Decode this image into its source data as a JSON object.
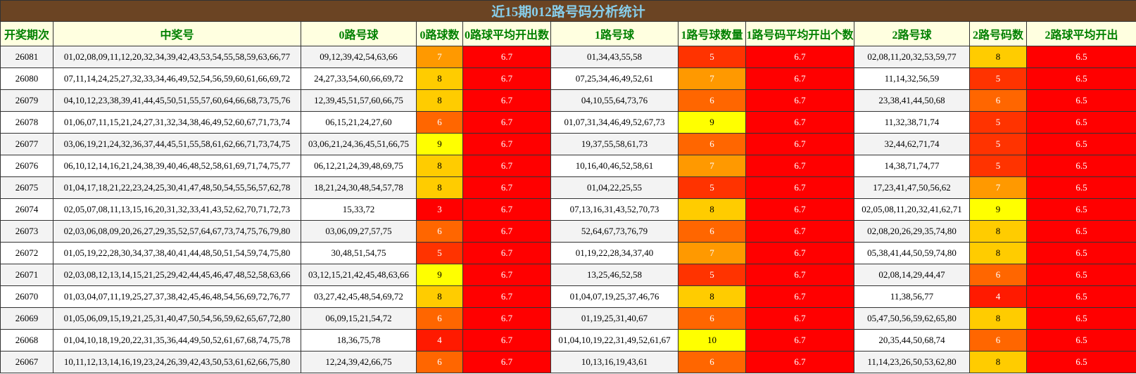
{
  "title": "近15期012路号码分析统计",
  "headers": [
    "开奖期次",
    "中奖号",
    "0路号球",
    "0路球数",
    "0路球平均开出数",
    "1路号球",
    "1路号球数量",
    "1路号码平均开出个数",
    "2路号球",
    "2路号码数",
    "2路球平均开出"
  ],
  "colors": {
    "header_bg": "#6b4423",
    "title_text": "#87ceeb",
    "subheader_bg": "#ffffe0",
    "subheader_text": "#008000",
    "avg_bg": "#ff0000",
    "count_scale": {
      "3": "#ff0000",
      "4": "#ff1a00",
      "5": "#ff3300",
      "6": "#ff6600",
      "7": "#ff9900",
      "8": "#ffcc00",
      "9": "#ffff00",
      "10": "#ffff00"
    }
  },
  "rows": [
    {
      "period": "26081",
      "numbers": "01,02,08,09,11,12,20,32,34,39,42,43,53,54,55,58,59,63,66,77",
      "r0": "09,12,39,42,54,63,66",
      "r0_count": "7",
      "r0_avg": "6.7",
      "r1": "01,34,43,55,58",
      "r1_count": "5",
      "r1_avg": "6.7",
      "r2": "02,08,11,20,32,53,59,77",
      "r2_count": "8",
      "r2_avg": "6.5"
    },
    {
      "period": "26080",
      "numbers": "07,11,14,24,25,27,32,33,34,46,49,52,54,56,59,60,61,66,69,72",
      "r0": "24,27,33,54,60,66,69,72",
      "r0_count": "8",
      "r0_avg": "6.7",
      "r1": "07,25,34,46,49,52,61",
      "r1_count": "7",
      "r1_avg": "6.7",
      "r2": "11,14,32,56,59",
      "r2_count": "5",
      "r2_avg": "6.5"
    },
    {
      "period": "26079",
      "numbers": "04,10,12,23,38,39,41,44,45,50,51,55,57,60,64,66,68,73,75,76",
      "r0": "12,39,45,51,57,60,66,75",
      "r0_count": "8",
      "r0_avg": "6.7",
      "r1": "04,10,55,64,73,76",
      "r1_count": "6",
      "r1_avg": "6.7",
      "r2": "23,38,41,44,50,68",
      "r2_count": "6",
      "r2_avg": "6.5"
    },
    {
      "period": "26078",
      "numbers": "01,06,07,11,15,21,24,27,31,32,34,38,46,49,52,60,67,71,73,74",
      "r0": "06,15,21,24,27,60",
      "r0_count": "6",
      "r0_avg": "6.7",
      "r1": "01,07,31,34,46,49,52,67,73",
      "r1_count": "9",
      "r1_avg": "6.7",
      "r2": "11,32,38,71,74",
      "r2_count": "5",
      "r2_avg": "6.5"
    },
    {
      "period": "26077",
      "numbers": "03,06,19,21,24,32,36,37,44,45,51,55,58,61,62,66,71,73,74,75",
      "r0": "03,06,21,24,36,45,51,66,75",
      "r0_count": "9",
      "r0_avg": "6.7",
      "r1": "19,37,55,58,61,73",
      "r1_count": "6",
      "r1_avg": "6.7",
      "r2": "32,44,62,71,74",
      "r2_count": "5",
      "r2_avg": "6.5"
    },
    {
      "period": "26076",
      "numbers": "06,10,12,14,16,21,24,38,39,40,46,48,52,58,61,69,71,74,75,77",
      "r0": "06,12,21,24,39,48,69,75",
      "r0_count": "8",
      "r0_avg": "6.7",
      "r1": "10,16,40,46,52,58,61",
      "r1_count": "7",
      "r1_avg": "6.7",
      "r2": "14,38,71,74,77",
      "r2_count": "5",
      "r2_avg": "6.5"
    },
    {
      "period": "26075",
      "numbers": "01,04,17,18,21,22,23,24,25,30,41,47,48,50,54,55,56,57,62,78",
      "r0": "18,21,24,30,48,54,57,78",
      "r0_count": "8",
      "r0_avg": "6.7",
      "r1": "01,04,22,25,55",
      "r1_count": "5",
      "r1_avg": "6.7",
      "r2": "17,23,41,47,50,56,62",
      "r2_count": "7",
      "r2_avg": "6.5"
    },
    {
      "period": "26074",
      "numbers": "02,05,07,08,11,13,15,16,20,31,32,33,41,43,52,62,70,71,72,73",
      "r0": "15,33,72",
      "r0_count": "3",
      "r0_avg": "6.7",
      "r1": "07,13,16,31,43,52,70,73",
      "r1_count": "8",
      "r1_avg": "6.7",
      "r2": "02,05,08,11,20,32,41,62,71",
      "r2_count": "9",
      "r2_avg": "6.5"
    },
    {
      "period": "26073",
      "numbers": "02,03,06,08,09,20,26,27,29,35,52,57,64,67,73,74,75,76,79,80",
      "r0": "03,06,09,27,57,75",
      "r0_count": "6",
      "r0_avg": "6.7",
      "r1": "52,64,67,73,76,79",
      "r1_count": "6",
      "r1_avg": "6.7",
      "r2": "02,08,20,26,29,35,74,80",
      "r2_count": "8",
      "r2_avg": "6.5"
    },
    {
      "period": "26072",
      "numbers": "01,05,19,22,28,30,34,37,38,40,41,44,48,50,51,54,59,74,75,80",
      "r0": "30,48,51,54,75",
      "r0_count": "5",
      "r0_avg": "6.7",
      "r1": "01,19,22,28,34,37,40",
      "r1_count": "7",
      "r1_avg": "6.7",
      "r2": "05,38,41,44,50,59,74,80",
      "r2_count": "8",
      "r2_avg": "6.5"
    },
    {
      "period": "26071",
      "numbers": "02,03,08,12,13,14,15,21,25,29,42,44,45,46,47,48,52,58,63,66",
      "r0": "03,12,15,21,42,45,48,63,66",
      "r0_count": "9",
      "r0_avg": "6.7",
      "r1": "13,25,46,52,58",
      "r1_count": "5",
      "r1_avg": "6.7",
      "r2": "02,08,14,29,44,47",
      "r2_count": "6",
      "r2_avg": "6.5"
    },
    {
      "period": "26070",
      "numbers": "01,03,04,07,11,19,25,27,37,38,42,45,46,48,54,56,69,72,76,77",
      "r0": "03,27,42,45,48,54,69,72",
      "r0_count": "8",
      "r0_avg": "6.7",
      "r1": "01,04,07,19,25,37,46,76",
      "r1_count": "8",
      "r1_avg": "6.7",
      "r2": "11,38,56,77",
      "r2_count": "4",
      "r2_avg": "6.5"
    },
    {
      "period": "26069",
      "numbers": "01,05,06,09,15,19,21,25,31,40,47,50,54,56,59,62,65,67,72,80",
      "r0": "06,09,15,21,54,72",
      "r0_count": "6",
      "r0_avg": "6.7",
      "r1": "01,19,25,31,40,67",
      "r1_count": "6",
      "r1_avg": "6.7",
      "r2": "05,47,50,56,59,62,65,80",
      "r2_count": "8",
      "r2_avg": "6.5"
    },
    {
      "period": "26068",
      "numbers": "01,04,10,18,19,20,22,31,35,36,44,49,50,52,61,67,68,74,75,78",
      "r0": "18,36,75,78",
      "r0_count": "4",
      "r0_avg": "6.7",
      "r1": "01,04,10,19,22,31,49,52,61,67",
      "r1_count": "10",
      "r1_avg": "6.7",
      "r2": "20,35,44,50,68,74",
      "r2_count": "6",
      "r2_avg": "6.5"
    },
    {
      "period": "26067",
      "numbers": "10,11,12,13,14,16,19,23,24,26,39,42,43,50,53,61,62,66,75,80",
      "r0": "12,24,39,42,66,75",
      "r0_count": "6",
      "r0_avg": "6.7",
      "r1": "10,13,16,19,43,61",
      "r1_count": "6",
      "r1_avg": "6.7",
      "r2": "11,14,23,26,50,53,62,80",
      "r2_count": "8",
      "r2_avg": "6.5"
    }
  ]
}
